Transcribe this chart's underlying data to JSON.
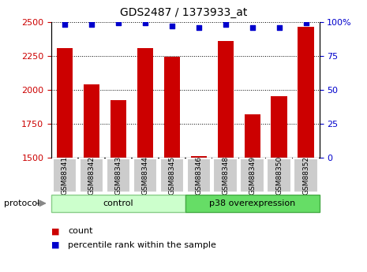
{
  "title": "GDS2487 / 1373933_at",
  "samples": [
    "GSM88341",
    "GSM88342",
    "GSM88343",
    "GSM88344",
    "GSM88345",
    "GSM88346",
    "GSM88348",
    "GSM88349",
    "GSM88350",
    "GSM88352"
  ],
  "counts": [
    2305,
    2040,
    1925,
    2305,
    2240,
    1510,
    2360,
    1820,
    1950,
    2460
  ],
  "percentile_ranks": [
    98,
    98,
    99,
    99,
    97,
    96,
    98,
    96,
    96,
    99
  ],
  "groups": [
    {
      "label": "control",
      "start": 0,
      "end": 5,
      "color": "#ccffcc",
      "border": "#88cc88"
    },
    {
      "label": "p38 overexpression",
      "start": 5,
      "end": 10,
      "color": "#66dd66",
      "border": "#44aa44"
    }
  ],
  "ylim_left": [
    1500,
    2500
  ],
  "ylim_right": [
    0,
    100
  ],
  "yticks_left": [
    1500,
    1750,
    2000,
    2250,
    2500
  ],
  "yticks_right": [
    0,
    25,
    50,
    75,
    100
  ],
  "bar_color": "#cc0000",
  "dot_color": "#0000cc",
  "grid_color": "#000000",
  "bg_color": "#ffffff",
  "tick_label_color_left": "#cc0000",
  "tick_label_color_right": "#0000cc",
  "protocol_label": "protocol",
  "legend_count_label": "count",
  "legend_percentile_label": "percentile rank within the sample",
  "xtick_bg": "#cccccc",
  "xtick_border": "#ffffff"
}
